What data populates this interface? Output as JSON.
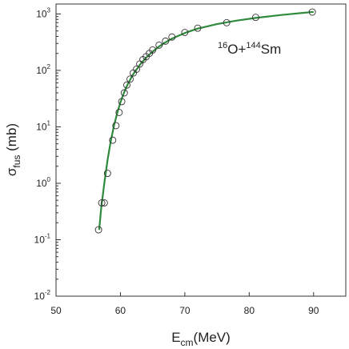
{
  "chart_data": {
    "type": "scatter",
    "xlabel": {
      "main": "E",
      "sub": "cm",
      "rest": "(MeV)"
    },
    "ylabel": {
      "main": "σ",
      "sub": "fus",
      "rest": " (mb)"
    },
    "annotation": {
      "sup1": "16",
      "base1": "O+",
      "sup2": "144",
      "base2": "Sm"
    },
    "xlim": [
      50,
      95
    ],
    "ylim": [
      0.01,
      1500
    ],
    "yscale": "log",
    "grid": false,
    "x_ticks": [
      50,
      60,
      70,
      80,
      90
    ],
    "y_ticks": [
      {
        "value": 0.01,
        "base": "10",
        "exp": "-2"
      },
      {
        "value": 0.1,
        "base": "10",
        "exp": "-1"
      },
      {
        "value": 1,
        "base": "10",
        "exp": "0"
      },
      {
        "value": 10,
        "base": "10",
        "exp": "1"
      },
      {
        "value": 100,
        "base": "10",
        "exp": "2"
      },
      {
        "value": 1000,
        "base": "10",
        "exp": "3"
      }
    ],
    "series": [
      {
        "kind": "scatter",
        "marker": "open-circle",
        "x": [
          56.6,
          57.1,
          57.5,
          58.0,
          58.8,
          59.3,
          59.8,
          60.2,
          60.6,
          61.0,
          61.5,
          62.0,
          62.5,
          63.0,
          63.5,
          64.0,
          64.5,
          65.0,
          66.0,
          67.0,
          68.0,
          70.0,
          72.0,
          76.5,
          81.0,
          89.8
        ],
        "y": [
          0.15,
          0.45,
          0.45,
          1.5,
          5.8,
          10.5,
          18,
          28,
          40,
          55,
          70,
          90,
          105,
          130,
          155,
          175,
          200,
          230,
          280,
          330,
          390,
          470,
          560,
          700,
          870,
          1080
        ]
      },
      {
        "kind": "line",
        "color": "#2e8b3c",
        "x": [
          56.7,
          57.0,
          57.5,
          58.0,
          58.5,
          59.0,
          59.5,
          60.0,
          60.5,
          61.0,
          61.5,
          62.0,
          63.0,
          64.0,
          65.0,
          66.0,
          67.0,
          68.0,
          70.0,
          72.0,
          75.0,
          78.0,
          81.0,
          85.0,
          90.0
        ],
        "y": [
          0.15,
          0.35,
          1.0,
          2.6,
          5.6,
          10.5,
          17.5,
          27,
          39,
          53,
          68,
          86,
          125,
          168,
          215,
          265,
          315,
          365,
          460,
          550,
          660,
          760,
          850,
          960,
          1090
        ]
      }
    ]
  }
}
